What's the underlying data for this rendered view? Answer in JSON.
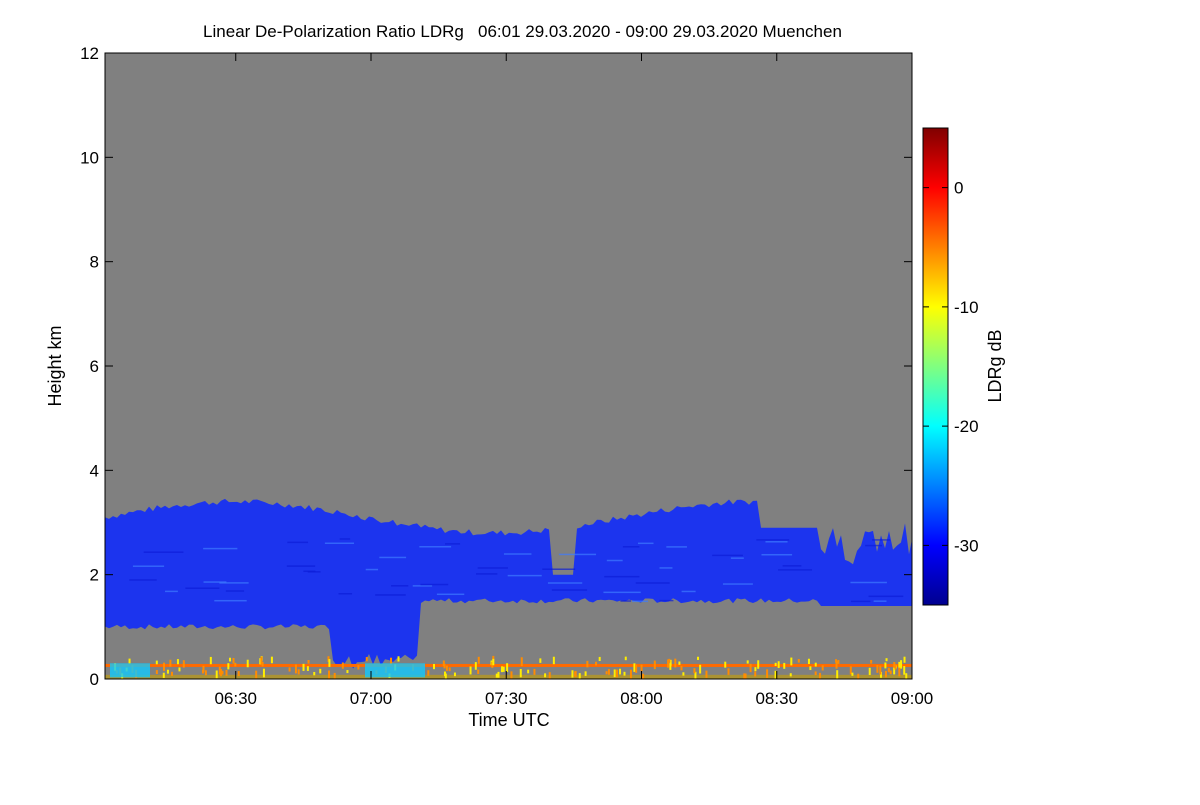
{
  "chart_data": {
    "type": "heatmap",
    "title": "Linear De-Polarization Ratio LDRg   06:01 29.03.2020 - 09:00 29.03.2020 Muenchen",
    "xlabel": "Time UTC",
    "ylabel": "Height km",
    "xlim": [
      "06:01",
      "09:00"
    ],
    "x_ticks": [
      "06:30",
      "07:00",
      "07:30",
      "08:00",
      "08:30",
      "09:00"
    ],
    "ylim": [
      0,
      12
    ],
    "y_ticks": [
      "0",
      "2",
      "4",
      "6",
      "8",
      "10",
      "12"
    ],
    "background_color": "#808080",
    "colorbar": {
      "label": "LDRg dB",
      "range": [
        -35,
        5
      ],
      "ticks": [
        "0",
        "-10",
        "-20",
        "-30"
      ],
      "colors": [
        "#00008f",
        "#0000ff",
        "#0080ff",
        "#00ffff",
        "#80ff80",
        "#ffff00",
        "#ff8000",
        "#ff0000",
        "#800000"
      ]
    },
    "cloud_layer": {
      "base_km": [
        0.9,
        1.6
      ],
      "top_km": [
        3.0,
        3.4
      ],
      "ldr_db": [
        -33,
        -28
      ],
      "description_color": "#1a2cf0"
    },
    "near_surface_layer": {
      "height_km": 0.25,
      "ldr_db": -5
    }
  }
}
